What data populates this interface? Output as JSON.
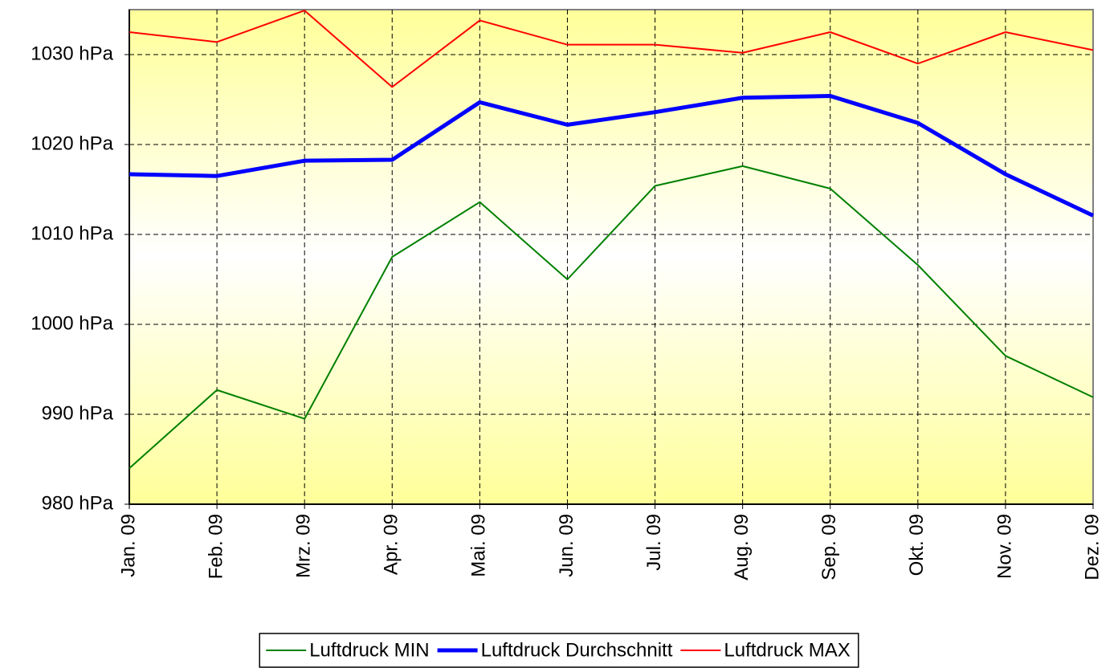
{
  "chart_data": {
    "type": "line",
    "categories": [
      "Jan. 09",
      "Feb. 09",
      "Mrz. 09",
      "Apr. 09",
      "Mai. 09",
      "Jun. 09",
      "Jul. 09",
      "Aug. 09",
      "Sep. 09",
      "Okt. 09",
      "Nov. 09",
      "Dez. 09"
    ],
    "series": [
      {
        "name": "Luftdruck MIN",
        "color": "#008000",
        "width": 2,
        "values": [
          984.0,
          992.7,
          989.5,
          1007.5,
          1013.6,
          1005.0,
          1015.4,
          1017.6,
          1015.1,
          1006.6,
          996.5,
          991.9
        ]
      },
      {
        "name": "Luftdruck Durchschnitt",
        "color": "#0000ff",
        "width": 5,
        "values": [
          1016.7,
          1016.5,
          1018.2,
          1018.3,
          1024.7,
          1022.2,
          1023.6,
          1025.2,
          1025.4,
          1022.4,
          1016.7,
          1012.1
        ]
      },
      {
        "name": "Luftdruck MAX",
        "color": "#ff0000",
        "width": 2,
        "values": [
          1032.5,
          1031.4,
          1034.9,
          1026.4,
          1033.8,
          1031.1,
          1031.1,
          1030.2,
          1032.5,
          1029.0,
          1032.5,
          1030.5
        ]
      }
    ],
    "ylim": [
      980,
      1035
    ],
    "yticks": [
      {
        "value": 980,
        "label": "980 hPa"
      },
      {
        "value": 990,
        "label": "990 hPa"
      },
      {
        "value": 1000,
        "label": "1000 hPa"
      },
      {
        "value": 1010,
        "label": "1010 hPa"
      },
      {
        "value": 1020,
        "label": "1020 hPa"
      },
      {
        "value": 1030,
        "label": "1030 hPa"
      }
    ],
    "grid": true,
    "legend": "bottom"
  }
}
